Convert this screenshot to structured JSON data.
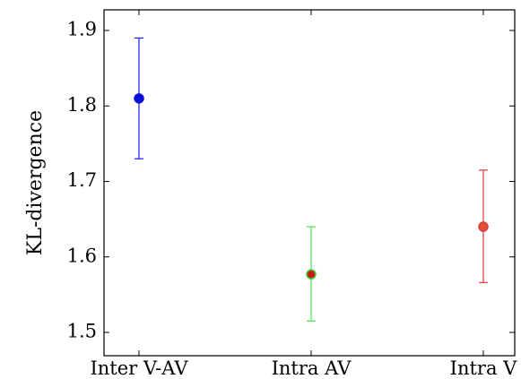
{
  "chart_data": {
    "type": "scatter",
    "ylabel": "KL-divergence",
    "ylim": [
      1.48,
      1.92
    ],
    "yticks": [
      1.5,
      1.6,
      1.7,
      1.8,
      1.9
    ],
    "ytick_labels": [
      "1.5",
      "1.6",
      "1.7",
      "1.8",
      "1.9"
    ],
    "categories": [
      "Inter V-AV",
      "Intra AV",
      "Intra V"
    ],
    "points": [
      {
        "category": "Inter V-AV",
        "value": 1.81,
        "lower": 1.73,
        "upper": 1.89,
        "marker_fill": "#0a10d8",
        "marker_edge": "#0a10d8",
        "error_color": "#2a2af0"
      },
      {
        "category": "Intra AV",
        "value": 1.577,
        "lower": 1.515,
        "upper": 1.64,
        "marker_fill": "#cc1a1a",
        "marker_edge": "#3fd13f",
        "error_color": "#5fe05f"
      },
      {
        "category": "Intra V",
        "value": 1.64,
        "lower": 1.566,
        "upper": 1.715,
        "marker_fill": "#e05030",
        "marker_edge": "#d83a3a",
        "error_color": "#e04545"
      }
    ],
    "grid": false
  }
}
